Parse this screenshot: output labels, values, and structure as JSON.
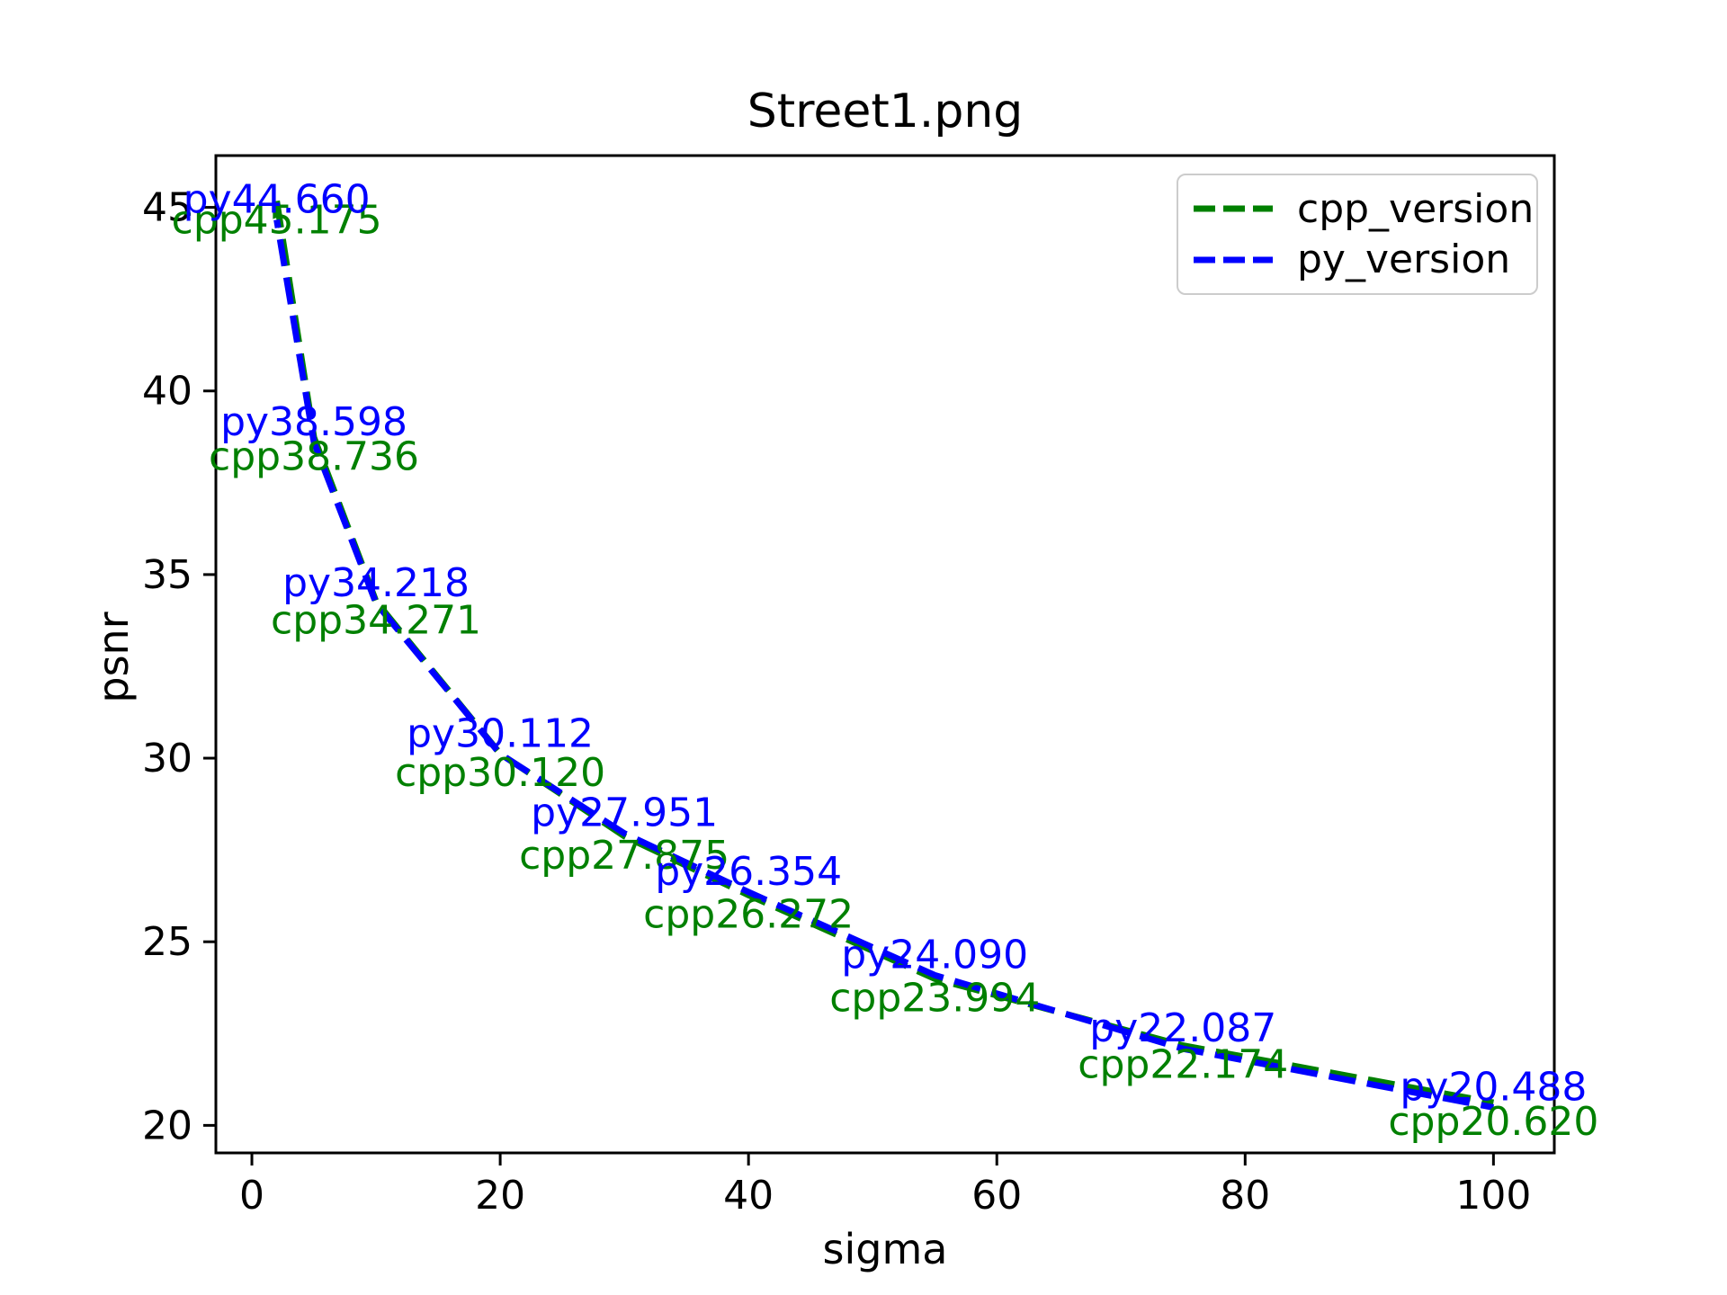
{
  "chart_data": {
    "type": "line",
    "title": "Street1.png",
    "xlabel": "sigma",
    "ylabel": "psnr",
    "x": [
      2,
      5,
      10,
      20,
      30,
      40,
      55,
      75,
      100
    ],
    "series": [
      {
        "name": "cpp_version",
        "color": "#008000",
        "linestyle": "dashed",
        "annotation_prefix": "cpp",
        "annotation_position": "below",
        "values": [
          45.175,
          38.736,
          34.271,
          30.12,
          27.875,
          26.272,
          23.994,
          22.174,
          20.62
        ]
      },
      {
        "name": "py_version",
        "color": "#0000ff",
        "linestyle": "dashed",
        "annotation_prefix": "py",
        "annotation_position": "above",
        "values": [
          44.66,
          38.598,
          34.218,
          30.112,
          27.951,
          26.354,
          24.09,
          22.087,
          20.488
        ]
      }
    ],
    "annotations": [
      "cpp45.175",
      "cpp38.736",
      "cpp34.271",
      "cpp30.120",
      "cpp27.875",
      "cpp26.272",
      "cpp23.994",
      "cpp22.174",
      "cpp20.620",
      "py44.660",
      "py38.598",
      "py34.218",
      "py30.112",
      "py27.951",
      "py26.354",
      "py24.090",
      "py22.087",
      "py20.488"
    ],
    "xticks": [
      0,
      20,
      40,
      60,
      80,
      100
    ],
    "yticks": [
      20,
      25,
      30,
      35,
      40,
      45
    ],
    "xlim": [
      -2.9,
      104.9
    ],
    "ylim": [
      19.25,
      46.41
    ],
    "grid": false,
    "legend": {
      "position": "upper right",
      "entries": [
        "cpp_version",
        "py_version"
      ]
    },
    "axes_color": "#000000"
  }
}
